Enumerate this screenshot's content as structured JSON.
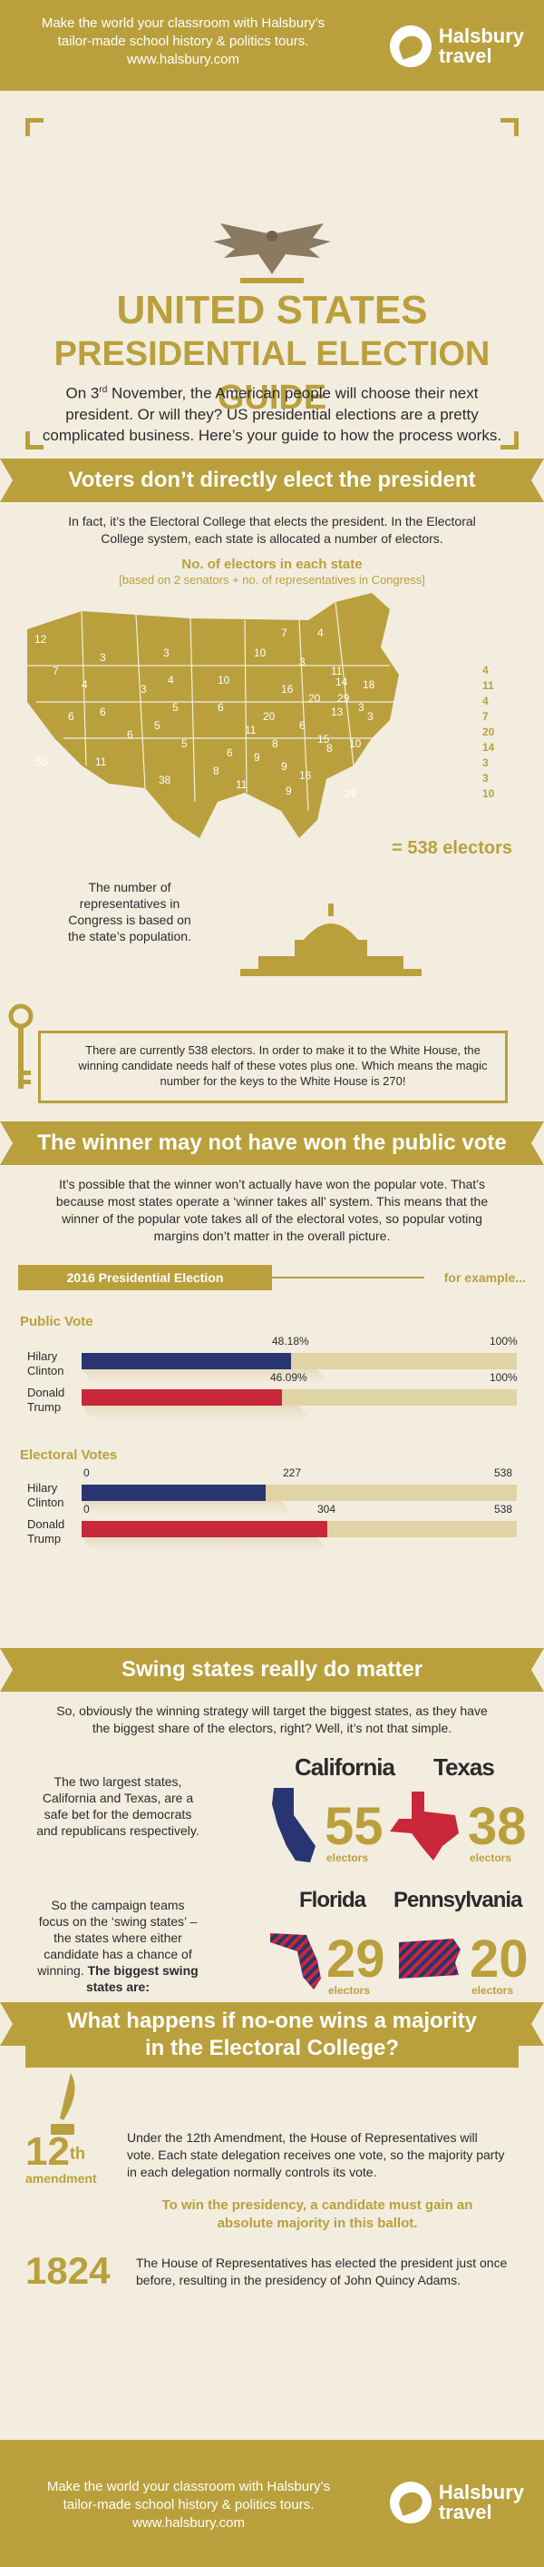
{
  "header": {
    "line1": "Make the world your classroom with Halsbury’s",
    "line2": "tailor-made school history & politics tours.",
    "url": "www.halsbury.com",
    "brand_line1": "Halsbury",
    "brand_line2": "travel"
  },
  "hero": {
    "title_line1": "UNITED STATES",
    "title_line2": "PRESIDENTIAL ELECTION GUIDE",
    "intro_pre": "On 3",
    "intro_sup": "rd",
    "intro_post": " November, the American people will choose their next president. Or will they? US presidential elections are a pretty complicated business. Here’s your guide to how the process works."
  },
  "section1": {
    "banner": "Voters don’t directly elect the president",
    "text": "In fact, it’s the Electoral College that elects the president. In the Electoral College system, each state is allocated a number of electors.",
    "map_title": "No. of electors in each state",
    "map_subtitle": "[based on 2 senators + no. of representatives in Congress]",
    "state_numbers": [
      "12",
      "3",
      "3",
      "10",
      "4",
      "7",
      "4",
      "3",
      "5",
      "10",
      "16",
      "55",
      "6",
      "6",
      "5",
      "6",
      "6",
      "20",
      "11",
      "5",
      "11",
      "6",
      "6",
      "9",
      "38",
      "8",
      "8",
      "9",
      "16",
      "8",
      "29",
      "29",
      "15",
      "18",
      "13",
      "3",
      "4",
      "7",
      "11",
      "3",
      "14",
      "20",
      "3",
      "10",
      "9",
      "11"
    ],
    "east_labels": [
      "4",
      "11",
      "4",
      "7",
      "20",
      "14",
      "3",
      "3",
      "10"
    ],
    "total": "= 538 electors",
    "pop_note": "The number of representatives in Congress is based on the state’s population.",
    "key_note": "There are currently 538 electors. In order to make it to the White House, the winning candidate needs half of these votes plus one. Which means the magic number for the keys to the White House is 270!"
  },
  "section2": {
    "banner": "The winner may not have won the public vote",
    "text": "It’s possible that the winner won’t actually have won the popular vote. That’s because most states operate a ‘winner takes all’ system. This means that the winner of the popular vote takes all of the electoral votes, so popular voting margins don’t matter in the overall picture.",
    "bar_header": "2016 Presidential Election",
    "bar_example": "for example...",
    "public_label": "Public Vote",
    "electoral_label": "Electoral Votes",
    "candidates": [
      "Hilary Clinton",
      "Donald Trump"
    ],
    "public": {
      "clinton": 48.18,
      "trump": 46.09,
      "clinton_label": "48.18%",
      "trump_label": "46.09%",
      "max_label": "100%"
    },
    "electoral": {
      "clinton": 227,
      "trump": 304,
      "max": 538,
      "clinton_label": "227",
      "trump_label": "304",
      "zero": "0",
      "max_label": "538"
    },
    "colors": {
      "clinton": "#283570",
      "trump": "#c8283a"
    }
  },
  "section3": {
    "banner": "Swing states really do matter",
    "text": "So, obviously the winning strategy will target the biggest states, as they have the biggest share of the electors, right? Well, it’s not that simple.",
    "safe_note": "The two largest states, California and Texas, are a safe bet for the democrats and republicans respectively.",
    "swing_note": "So the campaign teams focus on the ‘swing states’ – the states where either candidate has a chance of winning.",
    "swing_bold": "The biggest swing states are:",
    "states": [
      {
        "name": "California",
        "num": "55",
        "unit": "electors"
      },
      {
        "name": "Texas",
        "num": "38",
        "unit": "electors"
      },
      {
        "name": "Florida",
        "num": "29",
        "unit": "electors"
      },
      {
        "name": "Pennsylvania",
        "num": "20",
        "unit": "electors"
      }
    ]
  },
  "section4": {
    "banner_line1": "What happens if no-one wins a majority",
    "banner_line2": "in the Electoral College?",
    "amend_num": "12",
    "amend_sup": "th",
    "amend_word": "amendment",
    "amend_text": "Under the 12th Amendment, the House of Representatives will vote. Each state delegation receives one vote, so the majority party in each delegation normally controls its vote.",
    "highlight": "To win the presidency, a candidate must gain an absolute majority in this ballot.",
    "year": "1824",
    "year_text": "The House of Representatives has elected the president just once before, resulting in the presidency of John Quincy Adams."
  },
  "footer": {
    "line1": "Make the world your classroom with Halsbury’s",
    "line2": "tailor-made school history & politics tours.",
    "url": "www.halsbury.com",
    "brand_line1": "Halsbury",
    "brand_line2": "travel"
  }
}
